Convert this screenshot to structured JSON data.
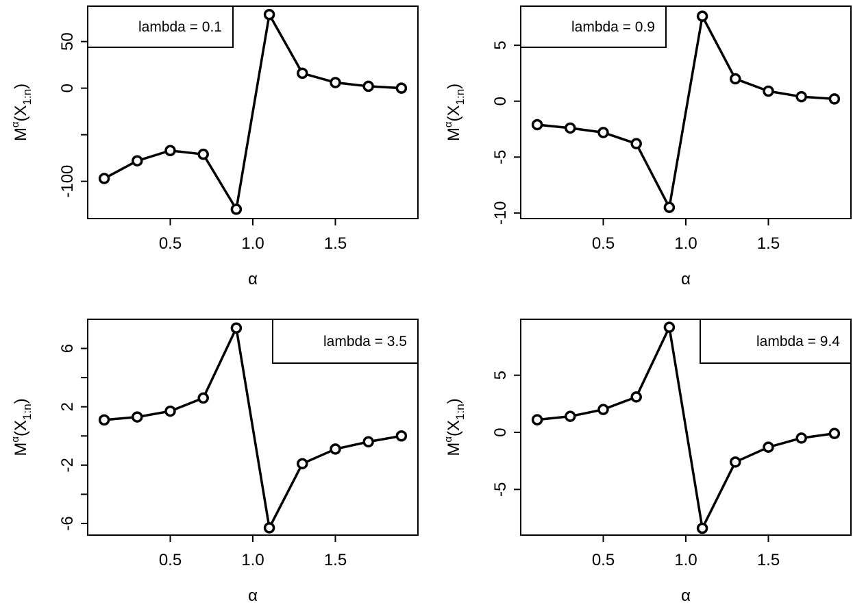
{
  "chart_data": [
    {
      "type": "line",
      "legend": "lambda = 0.1",
      "legend_position": "top-left",
      "xlabel": "α",
      "ylabel": {
        "base": "M",
        "sup": "α",
        "open": "(X",
        "sub": "1:n",
        "close": ")"
      },
      "x": [
        0.1,
        0.3,
        0.5,
        0.7,
        0.9,
        1.1,
        1.3,
        1.5,
        1.7,
        1.9
      ],
      "values": [
        -97,
        -78,
        -67,
        -71,
        -130,
        79,
        16,
        6,
        2,
        0
      ],
      "xlim": [
        0.0,
        2.0
      ],
      "ylim": [
        -140,
        88
      ],
      "xticks": [
        0.5,
        1.0,
        1.5
      ],
      "xtick_labels": [
        "0.5",
        "1.0",
        "1.5"
      ],
      "yticks": [
        -100,
        -50,
        0,
        50
      ],
      "ytick_labels": [
        "-100",
        "",
        "0",
        "50"
      ]
    },
    {
      "type": "line",
      "legend": "lambda = 0.9",
      "legend_position": "top-left",
      "xlabel": "α",
      "ylabel": {
        "base": "M",
        "sup": "α",
        "open": "(X",
        "sub": "1:n",
        "close": ")"
      },
      "x": [
        0.1,
        0.3,
        0.5,
        0.7,
        0.9,
        1.1,
        1.3,
        1.5,
        1.7,
        1.9
      ],
      "values": [
        -2.1,
        -2.4,
        -2.8,
        -3.8,
        -9.5,
        7.6,
        2.0,
        0.9,
        0.4,
        0.2
      ],
      "xlim": [
        0.0,
        2.0
      ],
      "ylim": [
        -10.5,
        8.5
      ],
      "xticks": [
        0.5,
        1.0,
        1.5
      ],
      "xtick_labels": [
        "0.5",
        "1.0",
        "1.5"
      ],
      "yticks": [
        -10,
        -5,
        0,
        5
      ],
      "ytick_labels": [
        "-10",
        "-5",
        "0",
        "5"
      ]
    },
    {
      "type": "line",
      "legend": "lambda = 3.5",
      "legend_position": "top-right",
      "xlabel": "α",
      "ylabel": {
        "base": "M",
        "sup": "α",
        "open": "(X",
        "sub": "1:n",
        "close": ")"
      },
      "x": [
        0.1,
        0.3,
        0.5,
        0.7,
        0.9,
        1.1,
        1.3,
        1.5,
        1.7,
        1.9
      ],
      "values": [
        1.1,
        1.3,
        1.7,
        2.6,
        7.4,
        -6.3,
        -1.9,
        -0.9,
        -0.4,
        0.0
      ],
      "xlim": [
        0.0,
        2.0
      ],
      "ylim": [
        -6.8,
        8.0
      ],
      "xticks": [
        0.5,
        1.0,
        1.5
      ],
      "xtick_labels": [
        "0.5",
        "1.0",
        "1.5"
      ],
      "yticks": [
        -6,
        -4,
        -2,
        0,
        2,
        4,
        6
      ],
      "ytick_labels": [
        "-6",
        "",
        "-2",
        "",
        "2",
        "",
        "6"
      ]
    },
    {
      "type": "line",
      "legend": "lambda = 9.4",
      "legend_position": "top-right",
      "xlabel": "α",
      "ylabel": {
        "base": "M",
        "sup": "α",
        "open": "(X",
        "sub": "1:n",
        "close": ")"
      },
      "x": [
        0.1,
        0.3,
        0.5,
        0.7,
        0.9,
        1.1,
        1.3,
        1.5,
        1.7,
        1.9
      ],
      "values": [
        1.1,
        1.4,
        2.0,
        3.1,
        9.2,
        -8.4,
        -2.6,
        -1.3,
        -0.5,
        -0.1
      ],
      "xlim": [
        0.0,
        2.0
      ],
      "ylim": [
        -9.0,
        9.9
      ],
      "xticks": [
        0.5,
        1.0,
        1.5
      ],
      "xtick_labels": [
        "0.5",
        "1.0",
        "1.5"
      ],
      "yticks": [
        -5,
        0,
        5
      ],
      "ytick_labels": [
        "-5",
        "0",
        "5"
      ]
    }
  ]
}
